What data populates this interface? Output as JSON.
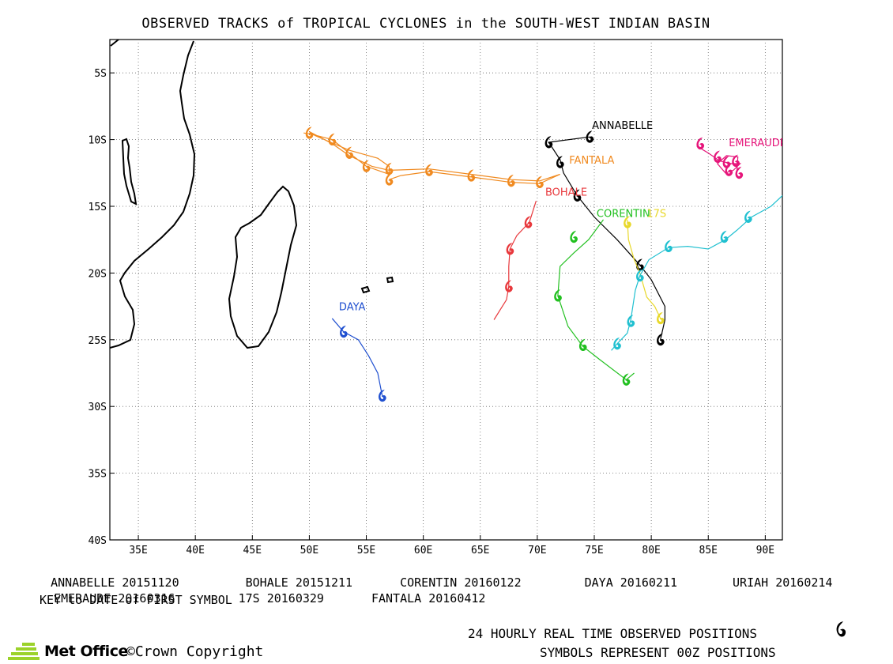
{
  "title": "OBSERVED TRACKS of TROPICAL CYCLONES in the SOUTH-WEST INDIAN BASIN",
  "map": {
    "lon_range": [
      32.5,
      91.5
    ],
    "lat_range": [
      -40,
      -2.5
    ],
    "lon_ticks": [
      "35E",
      "40E",
      "45E",
      "50E",
      "55E",
      "60E",
      "65E",
      "70E",
      "75E",
      "80E",
      "85E",
      "90E"
    ],
    "lon_tick_values": [
      35,
      40,
      45,
      50,
      55,
      60,
      65,
      70,
      75,
      80,
      85,
      90
    ],
    "lat_ticks": [
      "5S",
      "10S",
      "15S",
      "20S",
      "25S",
      "30S",
      "35S",
      "40S"
    ],
    "lat_tick_values": [
      -5,
      -10,
      -15,
      -20,
      -25,
      -30,
      -35,
      -40
    ],
    "grid": true,
    "land_color": "#000000"
  },
  "storms": [
    {
      "name": "ANNABELLE",
      "color": "#000000",
      "label_lonlat": [
        74.8,
        -9.2
      ],
      "track": [
        [
          74.6,
          -9.8
        ],
        [
          71,
          -10.2
        ],
        [
          72,
          -11.5
        ],
        [
          72.3,
          -12.5
        ],
        [
          73.5,
          -14.2
        ],
        [
          75,
          -15.8
        ],
        [
          77,
          -17.5
        ],
        [
          79,
          -19.4
        ],
        [
          80,
          -20.5
        ],
        [
          81.2,
          -22.5
        ],
        [
          81.2,
          -23.5
        ],
        [
          80.8,
          -25
        ]
      ],
      "symbols": [
        [
          74.6,
          -9.8
        ],
        [
          71,
          -10.2
        ],
        [
          72,
          -11.7
        ],
        [
          73.5,
          -14.2
        ],
        [
          79,
          -19.4
        ],
        [
          80.8,
          -25
        ]
      ]
    },
    {
      "name": "EMERAUDE",
      "color": "#e6157a",
      "label_lonlat": [
        86.8,
        -10.5
      ],
      "track": [
        [
          84,
          -10.5
        ],
        [
          85,
          -11
        ],
        [
          86,
          -11.6
        ],
        [
          87,
          -11.8
        ],
        [
          87.8,
          -11.8
        ],
        [
          87.2,
          -12.3
        ],
        [
          86.5,
          -12.5
        ],
        [
          85.8,
          -11.8
        ],
        [
          86.6,
          -11.2
        ],
        [
          87.6,
          -11.3
        ],
        [
          87.5,
          -12.5
        ]
      ],
      "symbols": [
        [
          84.3,
          -10.3
        ],
        [
          85.8,
          -11.3
        ],
        [
          86.6,
          -11.7
        ],
        [
          87.4,
          -11.6
        ],
        [
          86.8,
          -12.3
        ],
        [
          87.7,
          -12.5
        ]
      ]
    },
    {
      "name": "FANTALA",
      "color": "#f08a20",
      "label_lonlat": [
        72.8,
        -11.8
      ],
      "track": [
        [
          49.5,
          -9.5
        ],
        [
          50.2,
          -9.6
        ],
        [
          52,
          -10
        ],
        [
          53.5,
          -11
        ],
        [
          55,
          -12
        ],
        [
          57,
          -12.6
        ],
        [
          57,
          -12
        ],
        [
          56,
          -11.4
        ],
        [
          53.5,
          -10.8
        ],
        [
          50.5,
          -9.7
        ],
        [
          50,
          -9.4
        ],
        [
          52,
          -10.3
        ],
        [
          53.5,
          -11.2
        ],
        [
          55.5,
          -12
        ],
        [
          57,
          -12.3
        ],
        [
          60.5,
          -12.2
        ],
        [
          64.2,
          -12.6
        ],
        [
          67.7,
          -13
        ],
        [
          70.2,
          -13.1
        ],
        [
          72,
          -12.6
        ],
        [
          70.2,
          -13.3
        ],
        [
          67.7,
          -13.2
        ],
        [
          64.2,
          -12.8
        ],
        [
          60.5,
          -12.4
        ],
        [
          58,
          -12.7
        ],
        [
          57,
          -13
        ]
      ],
      "symbols": [
        [
          50,
          -9.5
        ],
        [
          52,
          -10
        ],
        [
          53.5,
          -11
        ],
        [
          55,
          -12
        ],
        [
          57,
          -12.2
        ],
        [
          57,
          -13
        ],
        [
          60.5,
          -12.3
        ],
        [
          64.2,
          -12.7
        ],
        [
          67.7,
          -13.1
        ],
        [
          70.2,
          -13.2
        ]
      ]
    },
    {
      "name": "BOHALE",
      "color": "#e8383c",
      "label_lonlat": [
        70.7,
        -14.2
      ],
      "track": [
        [
          69.9,
          -14.6
        ],
        [
          69.3,
          -16.2
        ],
        [
          68.2,
          -17.2
        ],
        [
          67.6,
          -18.2
        ],
        [
          67.5,
          -19.5
        ],
        [
          67.5,
          -21
        ],
        [
          67.3,
          -22
        ],
        [
          66.2,
          -23.5
        ]
      ],
      "symbols": [
        [
          69.2,
          -16.2
        ],
        [
          67.6,
          -18.2
        ],
        [
          67.5,
          -21
        ]
      ]
    },
    {
      "name": "CORENTIN",
      "color": "#22c020",
      "label_lonlat": [
        75.2,
        -15.8
      ],
      "track": [
        [
          75.8,
          -16
        ],
        [
          74.5,
          -17.5
        ],
        [
          73.2,
          -18.5
        ],
        [
          72,
          -19.5
        ],
        [
          71.8,
          -21.7
        ],
        [
          72.7,
          -24
        ],
        [
          74,
          -25.5
        ],
        [
          75.5,
          -26.5
        ],
        [
          77.8,
          -28
        ],
        [
          78.5,
          -27.5
        ]
      ],
      "symbols": [
        [
          73.2,
          -17.3
        ],
        [
          71.8,
          -21.7
        ],
        [
          74,
          -25.4
        ],
        [
          77.8,
          -28
        ]
      ]
    },
    {
      "name": "DAYA",
      "color": "#2050d0",
      "label_lonlat": [
        52.6,
        -22.8
      ],
      "track": [
        [
          52,
          -23.4
        ],
        [
          53,
          -24.4
        ],
        [
          54.3,
          -25
        ],
        [
          55.2,
          -26.2
        ],
        [
          56,
          -27.5
        ],
        [
          56.4,
          -29.2
        ]
      ],
      "symbols": [
        [
          53,
          -24.4
        ],
        [
          56.4,
          -29.2
        ]
      ]
    },
    {
      "name": "17S",
      "color": "#e8d82a",
      "label_lonlat": [
        79.6,
        -15.8
      ],
      "track": [
        [
          77.9,
          -16
        ],
        [
          78,
          -17.5
        ],
        [
          78.5,
          -19
        ],
        [
          79,
          -20
        ],
        [
          79.6,
          -21.8
        ],
        [
          80.3,
          -22.5
        ],
        [
          80.8,
          -23.4
        ]
      ],
      "symbols": [
        [
          77.9,
          -16.2
        ],
        [
          80.8,
          -23.4
        ]
      ]
    },
    {
      "name": "URIAH",
      "color": "#20c0d0",
      "label_lonlat": [
        0,
        0
      ],
      "track": [
        [
          93.8,
          -12.8
        ],
        [
          91.5,
          -14.2
        ],
        [
          90.5,
          -15
        ],
        [
          88.8,
          -15.8
        ],
        [
          87.5,
          -16.8
        ],
        [
          86.5,
          -17.5
        ],
        [
          85,
          -18.2
        ],
        [
          83.2,
          -18
        ],
        [
          81.5,
          -18.1
        ],
        [
          79.8,
          -19
        ],
        [
          79,
          -20.2
        ],
        [
          78.6,
          -21.3
        ],
        [
          78.2,
          -23.5
        ],
        [
          77.9,
          -24.5
        ],
        [
          77,
          -25.3
        ],
        [
          76.5,
          -25.8
        ]
      ],
      "symbols": [
        [
          88.5,
          -15.8
        ],
        [
          86.4,
          -17.3
        ],
        [
          81.5,
          -18
        ],
        [
          79,
          -20.2
        ],
        [
          78.2,
          -23.6
        ],
        [
          77,
          -25.3
        ]
      ]
    }
  ],
  "key": {
    "row1": [
      "ANNABELLE 20151120",
      "BOHALE 20151211",
      "CORENTIN 20160122",
      "DAYA 20160211",
      "URIAH 20160214"
    ],
    "row2": [
      "EMERAUDE 20160316",
      "17S 20160329",
      "FANTALA 20160412"
    ],
    "note": "KEY to DATE of FIRST SYMBOL"
  },
  "footer": {
    "positions": "24 HOURLY REAL TIME OBSERVED POSITIONS",
    "symbols": "SYMBOLS REPRESENT 00Z POSITIONS",
    "brand": "Met Office",
    "copyright": "©Crown Copyright"
  }
}
